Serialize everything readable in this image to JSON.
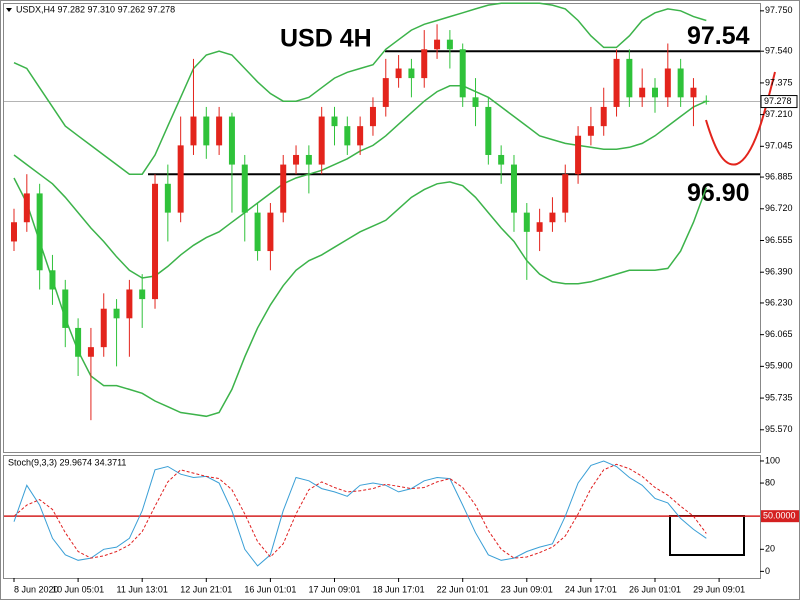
{
  "chart_data": {
    "type": "candlestick",
    "header": "USDX,H4  97.282 97.310 97.262 97.278",
    "title": "USD 4H",
    "ylim": [
      95.47,
      97.77
    ],
    "yticks": [
      {
        "value": 97.75,
        "label": "97.750"
      },
      {
        "value": 97.54,
        "label": "97.540"
      },
      97.375,
      {
        "value": 97.21,
        "label": "97.210"
      },
      97.045,
      96.885,
      {
        "value": 96.72,
        "label": "96.720"
      },
      96.555,
      {
        "value": 96.39,
        "label": "96.390"
      },
      {
        "value": 96.23,
        "label": "96.230"
      },
      96.065,
      {
        "value": 95.9,
        "label": "95.900"
      },
      95.735,
      {
        "value": 95.57,
        "label": "95.570"
      }
    ],
    "last_price": 97.278,
    "levels": [
      {
        "value": 97.54,
        "label": "97.54"
      },
      {
        "value": 96.9,
        "label": "96.90"
      }
    ],
    "up_color": "#e3241c",
    "down_color": "#2fc23a",
    "categories": [
      "8 Jun 2020",
      null,
      null,
      null,
      null,
      "10 Jun 05:01",
      null,
      null,
      null,
      null,
      "11 Jun 13:01",
      null,
      null,
      null,
      null,
      "12 Jun 21:01",
      null,
      null,
      null,
      null,
      "16 Jun 01:01",
      null,
      null,
      null,
      null,
      "17 Jun 09:01",
      null,
      null,
      null,
      null,
      "18 Jun 17:01",
      null,
      null,
      null,
      null,
      "22 Jun 01:01",
      null,
      null,
      null,
      null,
      "23 Jun 09:01",
      null,
      null,
      null,
      null,
      "24 Jun 17:01",
      null,
      null,
      null,
      null,
      "26 Jun 01:01",
      null,
      null,
      null,
      null,
      "29 Jun 09:01"
    ],
    "open": [
      96.55,
      96.65,
      96.8,
      96.4,
      96.3,
      96.1,
      95.95,
      96.0,
      96.2,
      96.15,
      96.3,
      96.25,
      96.85,
      96.7,
      97.05,
      97.2,
      97.05,
      97.2,
      96.95,
      96.7,
      96.5,
      96.7,
      96.95,
      97.0,
      96.95,
      97.2,
      97.15,
      97.05,
      97.15,
      97.25,
      97.4,
      97.45,
      97.4,
      97.55,
      97.6,
      97.55,
      97.3,
      97.25,
      97.0,
      96.95,
      96.7,
      96.6,
      96.65,
      96.7,
      96.9,
      97.1,
      97.15,
      97.25,
      97.5,
      97.3,
      97.35,
      97.3,
      97.45,
      97.3,
      97.282,
      null
    ],
    "high": [
      96.72,
      96.9,
      96.85,
      96.48,
      96.35,
      96.15,
      96.1,
      96.28,
      96.25,
      96.35,
      96.38,
      96.9,
      96.95,
      97.2,
      97.5,
      97.25,
      97.25,
      97.22,
      97.0,
      96.75,
      96.75,
      97.0,
      97.05,
      97.05,
      97.25,
      97.25,
      97.2,
      97.2,
      97.3,
      97.5,
      97.52,
      97.5,
      97.65,
      97.68,
      97.65,
      97.58,
      97.4,
      97.3,
      97.05,
      97.0,
      96.75,
      96.72,
      96.78,
      96.95,
      97.15,
      97.25,
      97.35,
      97.55,
      97.55,
      97.45,
      97.4,
      97.58,
      97.5,
      97.4,
      97.31,
      null
    ],
    "low": [
      96.5,
      96.6,
      96.3,
      96.22,
      96.0,
      95.85,
      95.62,
      95.95,
      95.9,
      95.95,
      96.1,
      96.2,
      96.55,
      96.65,
      97.0,
      96.98,
      97.0,
      96.7,
      96.55,
      96.45,
      96.4,
      96.65,
      96.9,
      96.8,
      96.9,
      97.05,
      97.0,
      97.0,
      97.1,
      97.2,
      97.35,
      97.3,
      97.35,
      97.5,
      97.45,
      97.25,
      97.15,
      96.95,
      96.85,
      96.6,
      96.35,
      96.5,
      96.6,
      96.65,
      96.85,
      97.05,
      97.1,
      97.2,
      97.25,
      97.25,
      97.22,
      97.25,
      97.25,
      97.15,
      97.262,
      null
    ],
    "close": [
      96.65,
      96.8,
      96.4,
      96.3,
      96.1,
      95.95,
      96.0,
      96.2,
      96.15,
      96.3,
      96.25,
      96.85,
      96.7,
      97.05,
      97.2,
      97.05,
      97.2,
      96.95,
      96.7,
      96.5,
      96.7,
      96.95,
      97.0,
      96.95,
      97.2,
      97.15,
      97.05,
      97.15,
      97.25,
      97.4,
      97.45,
      97.4,
      97.55,
      97.6,
      97.55,
      97.3,
      97.25,
      97.0,
      96.95,
      96.7,
      96.6,
      96.65,
      96.7,
      96.9,
      97.1,
      97.15,
      97.25,
      97.5,
      97.3,
      97.35,
      97.3,
      97.45,
      97.3,
      97.35,
      97.278,
      null
    ],
    "bollinger": {
      "color": "#3cb34a",
      "upper": [
        97.48,
        97.45,
        97.35,
        97.25,
        97.15,
        97.1,
        97.05,
        97.0,
        96.95,
        96.9,
        96.9,
        97.0,
        97.15,
        97.3,
        97.45,
        97.52,
        97.54,
        97.52,
        97.45,
        97.38,
        97.32,
        97.28,
        97.28,
        97.3,
        97.35,
        97.4,
        97.43,
        97.45,
        97.47,
        97.55,
        97.6,
        97.65,
        97.68,
        97.7,
        97.72,
        97.74,
        97.76,
        97.78,
        97.79,
        97.79,
        97.79,
        97.79,
        97.78,
        97.76,
        97.7,
        97.62,
        97.56,
        97.56,
        97.62,
        97.7,
        97.74,
        97.76,
        97.75,
        97.72,
        97.7,
        null
      ],
      "middle": [
        97.0,
        96.95,
        96.9,
        96.85,
        96.78,
        96.7,
        96.62,
        96.55,
        96.47,
        96.4,
        96.36,
        96.37,
        96.42,
        96.48,
        96.53,
        96.57,
        96.6,
        96.65,
        96.7,
        96.75,
        96.8,
        96.85,
        96.88,
        96.9,
        96.92,
        96.95,
        96.98,
        97.02,
        97.05,
        97.1,
        97.16,
        97.22,
        97.28,
        97.33,
        97.36,
        97.36,
        97.33,
        97.3,
        97.25,
        97.2,
        97.15,
        97.1,
        97.08,
        97.06,
        97.05,
        97.04,
        97.03,
        97.03,
        97.04,
        97.06,
        97.1,
        97.15,
        97.2,
        97.25,
        97.28,
        null
      ],
      "lower": [
        96.88,
        96.75,
        96.55,
        96.35,
        96.15,
        95.98,
        95.85,
        95.8,
        95.8,
        95.78,
        95.76,
        95.72,
        95.69,
        95.66,
        95.65,
        95.64,
        95.66,
        95.78,
        95.95,
        96.1,
        96.22,
        96.32,
        96.4,
        96.45,
        96.48,
        96.52,
        96.56,
        96.6,
        96.63,
        96.66,
        96.72,
        96.78,
        96.82,
        96.85,
        96.86,
        96.84,
        96.78,
        96.7,
        96.62,
        96.55,
        96.45,
        96.38,
        96.34,
        96.33,
        96.33,
        96.34,
        96.36,
        96.38,
        96.4,
        96.4,
        96.4,
        96.41,
        96.5,
        96.65,
        96.83,
        null
      ]
    },
    "stochastic": {
      "title": "Stoch(9,3,3) 29.9674 34.3711",
      "ylim": [
        -6,
        104.5
      ],
      "yticks": [
        100,
        80,
        20,
        0
      ],
      "level": {
        "value": 50,
        "label": "50.0000",
        "color": "#d42020"
      },
      "k": {
        "color": "#3a9fd6",
        "values": [
          45,
          78,
          60,
          30,
          15,
          10,
          12,
          20,
          22,
          30,
          55,
          92,
          95,
          88,
          85,
          86,
          80,
          55,
          20,
          5,
          15,
          55,
          85,
          82,
          75,
          72,
          68,
          78,
          80,
          78,
          72,
          75,
          82,
          85,
          84,
          60,
          35,
          15,
          10,
          12,
          18,
          22,
          25,
          50,
          80,
          96,
          100,
          95,
          85,
          78,
          66,
          62,
          48,
          38,
          29.9674,
          null
        ]
      },
      "d": {
        "color": "#e02020",
        "values": [
          50,
          60,
          65,
          56,
          35,
          18,
          12,
          14,
          18,
          24,
          36,
          59,
          81,
          92,
          89,
          86,
          84,
          74,
          52,
          27,
          13,
          25,
          52,
          74,
          81,
          76,
          72,
          73,
          75,
          79,
          77,
          75,
          76,
          81,
          84,
          76,
          60,
          37,
          20,
          12,
          13,
          17,
          22,
          32,
          52,
          75,
          92,
          97,
          93,
          86,
          76,
          69,
          59,
          50,
          34.3711,
          null
        ]
      }
    }
  }
}
